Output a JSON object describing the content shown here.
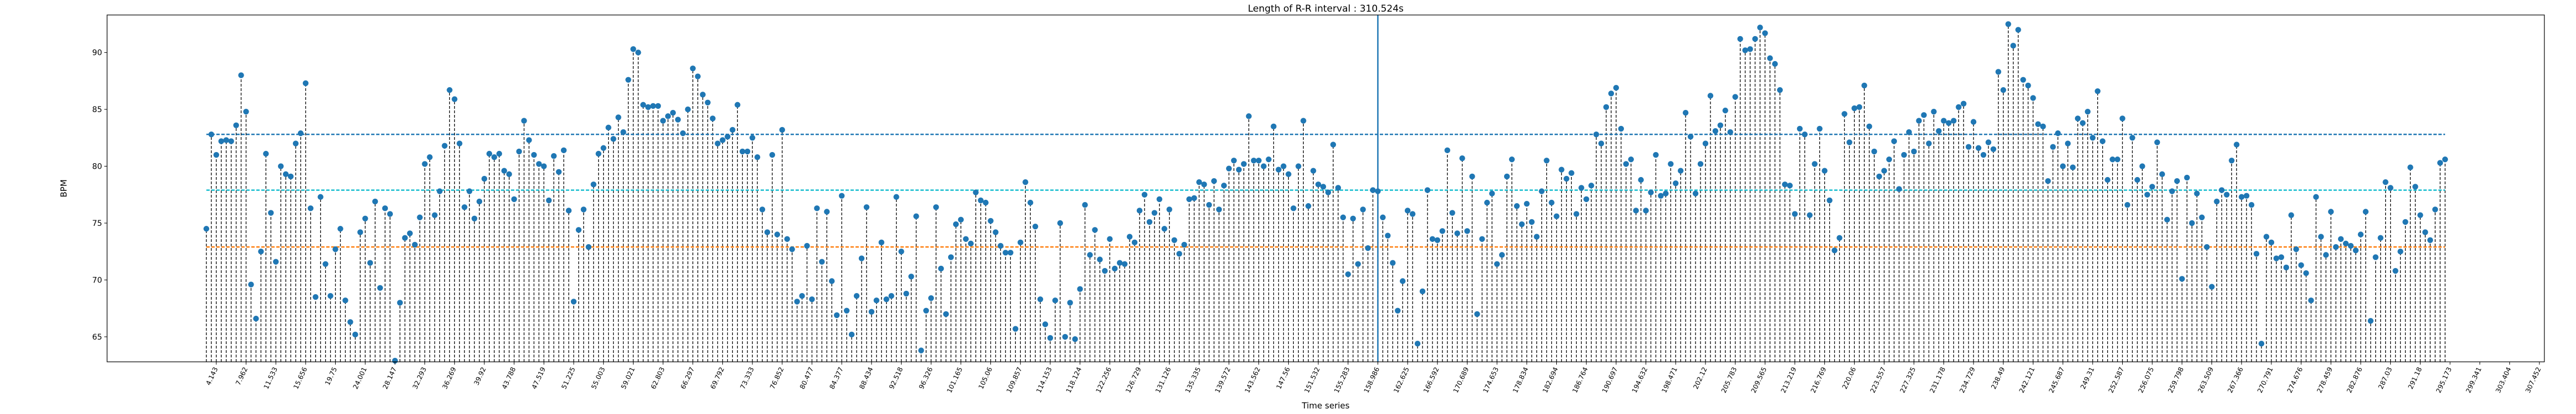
{
  "chart_data": {
    "type": "stem",
    "title": "Length of R-R interval : 310.524s",
    "xlabel": "Time series",
    "ylabel": "BPM",
    "ylim": [
      62.8,
      93.3
    ],
    "yticks": [
      65,
      70,
      75,
      80,
      85,
      90
    ],
    "grid": false,
    "baseline": 62.8,
    "xtick_labels": [
      "4.143",
      "7.962",
      "11.533",
      "15.656",
      "19.75",
      "24.001",
      "28.147",
      "32.293",
      "36.269",
      "39.92",
      "43.788",
      "47.519",
      "51.225",
      "55.003",
      "59.021",
      "62.803",
      "66.297",
      "69.792",
      "73.333",
      "76.852",
      "80.477",
      "84.377",
      "88.434",
      "92.518",
      "96.326",
      "101.165",
      "105.06",
      "109.857",
      "114.153",
      "118.124",
      "122.256",
      "126.729",
      "131.126",
      "135.335",
      "139.572",
      "143.562",
      "147.56",
      "151.532",
      "155.283",
      "158.986",
      "162.625",
      "166.592",
      "170.689",
      "174.653",
      "178.834",
      "182.694",
      "186.764",
      "190.697",
      "194.632",
      "198.471",
      "202.12",
      "205.783",
      "209.565",
      "213.219",
      "216.769",
      "220.06",
      "223.557",
      "227.325",
      "231.178",
      "234.729",
      "238.49",
      "242.121",
      "245.687",
      "249.31",
      "252.587",
      "256.075",
      "259.798",
      "263.509",
      "267.366",
      "270.791",
      "274.676",
      "278.459",
      "282.876",
      "287.03",
      "291.18",
      "295.173",
      "299.341",
      "303.404",
      "307.452"
    ],
    "cursor_line": {
      "x_label": "158.986",
      "color": "#1f77b4"
    },
    "reference_lines": [
      {
        "value": 82.8,
        "color": "#1f77b4",
        "style": "dashed"
      },
      {
        "value": 77.9,
        "color": "#17becf",
        "style": "dashed"
      },
      {
        "value": 72.9,
        "color": "#ff7f0e",
        "style": "dashed"
      }
    ],
    "series": [
      {
        "marker_color": "#1f77b4",
        "stem_color": "#000000",
        "values": [
          74.5,
          82.8,
          81.0,
          82.2,
          82.3,
          82.2,
          83.6,
          88.0,
          84.8,
          69.6,
          66.6,
          72.5,
          81.1,
          75.9,
          71.6,
          80.0,
          79.3,
          79.1,
          82.0,
          82.9,
          87.3,
          76.3,
          68.5,
          77.3,
          71.4,
          68.6,
          72.7,
          74.5,
          68.2,
          66.3,
          65.2,
          74.2,
          75.4,
          71.5,
          76.9,
          69.3,
          76.3,
          75.8,
          62.9,
          68.0,
          73.7,
          74.1,
          73.1,
          75.5,
          80.2,
          80.8,
          75.7,
          77.8,
          81.8,
          86.7,
          85.9,
          82.0,
          76.4,
          77.8,
          75.4,
          76.9,
          78.9,
          81.1,
          80.8,
          81.1,
          79.6,
          79.3,
          77.1,
          81.3,
          84.0,
          82.3,
          81.0,
          80.2,
          80.0,
          77.0,
          80.9,
          79.5,
          81.4,
          76.1,
          68.1,
          74.4,
          76.2,
          72.9,
          78.4,
          81.1,
          81.6,
          83.4,
          82.4,
          84.3,
          83.0,
          87.6,
          90.3,
          90.0,
          85.4,
          85.2,
          85.3,
          85.3,
          84.0,
          84.4,
          84.7,
          84.1,
          82.9,
          85.0,
          88.6,
          87.9,
          86.3,
          85.6,
          84.2,
          82.0,
          82.3,
          82.6,
          83.2,
          85.4,
          81.3,
          81.3,
          82.5,
          80.8,
          76.2,
          74.2,
          81.0,
          74.0,
          83.2,
          73.6,
          72.7,
          68.1,
          68.6,
          73.0,
          68.3,
          76.3,
          71.6,
          76.0,
          69.9,
          66.9,
          77.4,
          67.3,
          65.2,
          68.6,
          71.9,
          76.4,
          67.2,
          68.2,
          73.3,
          68.3,
          68.6,
          77.3,
          72.5,
          68.8,
          70.3,
          75.6,
          63.8,
          67.3,
          68.4,
          76.4,
          71.0,
          67.0,
          72.0,
          74.9,
          75.3,
          73.6,
          73.2,
          77.7,
          77.0,
          76.8,
          75.2,
          74.2,
          73.0,
          72.4,
          72.4,
          65.7,
          73.3,
          78.6,
          76.8,
          74.7,
          68.3,
          66.1,
          64.9,
          68.2,
          75.0,
          65.0,
          68.0,
          64.8,
          69.2,
          76.6,
          72.2,
          74.4,
          71.8,
          70.8,
          73.6,
          71.0,
          71.5,
          71.4,
          73.8,
          73.3,
          76.1,
          77.5,
          75.1,
          75.9,
          77.1,
          74.5,
          76.2,
          73.5,
          72.3,
          73.1,
          77.1,
          77.2,
          78.6,
          78.4,
          76.6,
          78.7,
          76.2,
          78.3,
          79.8,
          80.5,
          79.7,
          80.2,
          84.4,
          80.5,
          80.5,
          80.0,
          80.6,
          83.5,
          79.7,
          80.0,
          79.3,
          76.3,
          80.0,
          84.0,
          76.5,
          79.6,
          78.4,
          78.2,
          77.7,
          81.9,
          78.1,
          75.5,
          70.5,
          75.4,
          71.4,
          76.2,
          72.8,
          77.9,
          77.8,
          75.5,
          73.9,
          71.5,
          67.3,
          69.9,
          76.1,
          75.8,
          64.4,
          69.0,
          77.9,
          73.6,
          73.5,
          74.3,
          81.4,
          75.9,
          74.1,
          80.7,
          74.3,
          79.1,
          67.0,
          73.6,
          76.8,
          77.6,
          71.4,
          72.2,
          79.1,
          80.6,
          76.5,
          74.9,
          76.7,
          75.1,
          73.8,
          77.8,
          80.5,
          76.8,
          75.6,
          79.7,
          78.9,
          79.4,
          75.8,
          78.1,
          77.1,
          78.3,
          82.8,
          82.0,
          85.2,
          86.4,
          86.9,
          83.3,
          80.2,
          80.6,
          76.1,
          78.8,
          76.1,
          77.7,
          81.0,
          77.4,
          77.6,
          80.2,
          78.5,
          79.6,
          84.7,
          82.6,
          77.6,
          80.2,
          82.0,
          86.2,
          83.1,
          83.6,
          84.9,
          83.0,
          86.1,
          91.2,
          90.2,
          90.3,
          91.2,
          92.2,
          91.7,
          89.5,
          89.0,
          86.7,
          78.4,
          78.3,
          75.8,
          83.3,
          82.8,
          75.7,
          80.2,
          83.3,
          79.6,
          77.0,
          72.6,
          73.7,
          84.6,
          82.1,
          85.1,
          85.2,
          87.1,
          83.5,
          81.3,
          79.1,
          79.6,
          80.6,
          82.2,
          78.0,
          81.0,
          83.0,
          81.3,
          84.0,
          84.5,
          82.0,
          84.8,
          83.1,
          84.0,
          83.8,
          84.0,
          85.2,
          85.5,
          81.7,
          83.9,
          81.6,
          81.0,
          82.1,
          81.5,
          88.3,
          86.7,
          92.5,
          90.6,
          92.0,
          87.6,
          87.1,
          86.0,
          83.7,
          83.5,
          78.7,
          81.7,
          82.9,
          80.0,
          82.0,
          79.9,
          84.2,
          83.8,
          84.8,
          82.5,
          86.6,
          82.2,
          78.8,
          80.6,
          80.6,
          84.2,
          76.6,
          82.5,
          78.8,
          80.0,
          77.5,
          78.2,
          82.1,
          79.3,
          75.3,
          77.8,
          78.7,
          70.1,
          79.0,
          75.0,
          77.6,
          75.5,
          72.9,
          69.4,
          76.9,
          77.9,
          77.5,
          80.5,
          81.9,
          77.3,
          77.4,
          76.6,
          72.3,
          64.4,
          73.8,
          73.3,
          71.9,
          72.0,
          71.1,
          75.7,
          72.7,
          71.3,
          70.6,
          68.2,
          77.3,
          73.8,
          72.2,
          76.0,
          72.9,
          73.6,
          73.2,
          73.0,
          72.6,
          74.0,
          76.0,
          66.4,
          72.0,
          73.7,
          78.6,
          78.1,
          70.8,
          72.5,
          75.1,
          79.9,
          78.2,
          75.7,
          74.2,
          73.5,
          76.2,
          80.3,
          80.6
        ]
      }
    ]
  }
}
